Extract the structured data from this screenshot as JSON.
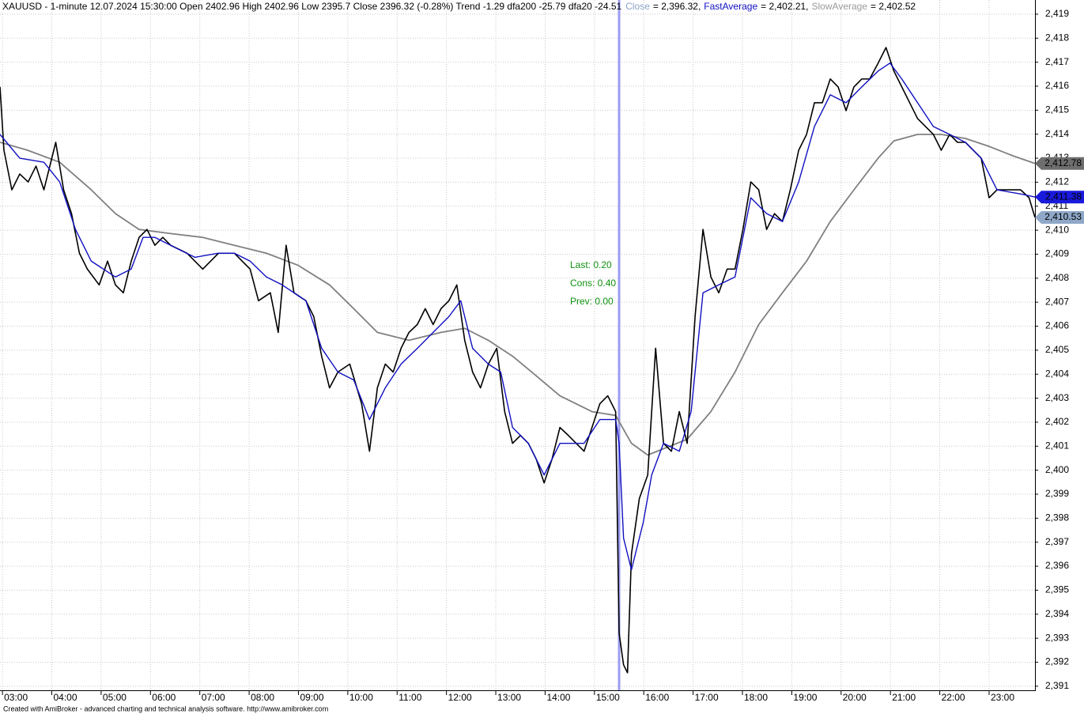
{
  "chart_data": {
    "type": "line",
    "title": "XAUUSD - 1-minute 12.07.2024 15:30:00 Open 2402.96 High 2402.96 Low 2395.7 Close 2396.32 (-0.28%) Trend -1.29 dfa200 -25.79 dfa20 -24.51",
    "footer": "Created with AmiBroker - advanced charting and technical analysis software. http://www.amibroker.com",
    "annotations": [
      "Last: 0.20",
      "Cons: 0.40",
      "Prev: 0.00"
    ],
    "selected_x": 15.5,
    "grid": true,
    "xlim": [
      2.95,
      23.93
    ],
    "ylim": [
      2390.83,
      2419.59
    ],
    "xticks": [
      {
        "value": 3,
        "label": "03:00"
      },
      {
        "value": 4,
        "label": "04:00"
      },
      {
        "value": 5,
        "label": "05:00"
      },
      {
        "value": 6,
        "label": "06:00"
      },
      {
        "value": 7,
        "label": "07:00"
      },
      {
        "value": 8,
        "label": "08:00"
      },
      {
        "value": 9,
        "label": "09:00"
      },
      {
        "value": 10,
        "label": "10:00"
      },
      {
        "value": 11,
        "label": "11:00"
      },
      {
        "value": 12,
        "label": "12:00"
      },
      {
        "value": 13,
        "label": "13:00"
      },
      {
        "value": 14,
        "label": "14:00"
      },
      {
        "value": 15,
        "label": "15:00"
      },
      {
        "value": 16,
        "label": "16:00"
      },
      {
        "value": 17,
        "label": "17:00"
      },
      {
        "value": 18,
        "label": "18:00"
      },
      {
        "value": 19,
        "label": "19:00"
      },
      {
        "value": 20,
        "label": "20:00"
      },
      {
        "value": 21,
        "label": "21:00"
      },
      {
        "value": 22,
        "label": "22:00"
      },
      {
        "value": 23,
        "label": "23:00"
      }
    ],
    "yticks": [
      {
        "value": 2391,
        "label": "2,391"
      },
      {
        "value": 2392,
        "label": "2,392"
      },
      {
        "value": 2393,
        "label": "2,393"
      },
      {
        "value": 2394,
        "label": "2,394"
      },
      {
        "value": 2395,
        "label": "2,395"
      },
      {
        "value": 2396,
        "label": "2,396"
      },
      {
        "value": 2397,
        "label": "2,397"
      },
      {
        "value": 2398,
        "label": "2,398"
      },
      {
        "value": 2399,
        "label": "2,399"
      },
      {
        "value": 2400,
        "label": "2,400"
      },
      {
        "value": 2401,
        "label": "2,401"
      },
      {
        "value": 2402,
        "label": "2,402"
      },
      {
        "value": 2403,
        "label": "2,403"
      },
      {
        "value": 2404,
        "label": "2,404"
      },
      {
        "value": 2405,
        "label": "2,405"
      },
      {
        "value": 2406,
        "label": "2,406"
      },
      {
        "value": 2407,
        "label": "2,407"
      },
      {
        "value": 2408,
        "label": "2,408"
      },
      {
        "value": 2409,
        "label": "2,409"
      },
      {
        "value": 2410,
        "label": "2,410"
      },
      {
        "value": 2411,
        "label": "2,411"
      },
      {
        "value": 2412,
        "label": "2,412"
      },
      {
        "value": 2413,
        "label": "2,413"
      },
      {
        "value": 2414,
        "label": "2,414"
      },
      {
        "value": 2415,
        "label": "2,415"
      },
      {
        "value": 2416,
        "label": "2,416"
      },
      {
        "value": 2417,
        "label": "2,417"
      },
      {
        "value": 2418,
        "label": "2,418"
      },
      {
        "value": 2419,
        "label": "2,419"
      }
    ],
    "series": [
      {
        "name": "Close",
        "color": "#000000",
        "legend_color": "#8aa4c8",
        "legend_value": "= 2,396.32,",
        "last_label": "2,410.53",
        "badge_color": "#8fa8c8",
        "width": 1.6,
        "x": [
          2.95,
          3.03,
          3.19,
          3.35,
          3.52,
          3.68,
          3.84,
          4.08,
          4.24,
          4.4,
          4.56,
          4.72,
          4.96,
          5.13,
          5.29,
          5.45,
          5.61,
          5.77,
          5.93,
          6.09,
          6.25,
          6.41,
          6.74,
          7.06,
          7.38,
          7.7,
          7.86,
          8.02,
          8.19,
          8.43,
          8.59,
          8.75,
          8.91,
          9.15,
          9.31,
          9.47,
          9.63,
          9.8,
          10.04,
          10.28,
          10.44,
          10.6,
          10.76,
          10.92,
          11.08,
          11.24,
          11.41,
          11.57,
          11.73,
          11.89,
          12.05,
          12.21,
          12.37,
          12.53,
          12.69,
          12.85,
          13.02,
          13.18,
          13.34,
          13.5,
          13.66,
          13.82,
          13.98,
          14.14,
          14.3,
          14.47,
          14.63,
          14.79,
          14.95,
          15.11,
          15.27,
          15.43,
          15.5,
          15.59,
          15.67,
          15.75,
          15.91,
          16.08,
          16.24,
          16.4,
          16.56,
          16.72,
          16.88,
          17.04,
          17.2,
          17.36,
          17.52,
          17.69,
          17.85,
          18.01,
          18.17,
          18.33,
          18.49,
          18.65,
          18.81,
          18.97,
          19.14,
          19.3,
          19.46,
          19.62,
          19.78,
          19.94,
          20.1,
          20.26,
          20.42,
          20.58,
          20.75,
          20.91,
          21.07,
          21.23,
          21.39,
          21.55,
          21.71,
          21.87,
          22.03,
          22.2,
          22.36,
          22.52,
          22.68,
          22.84,
          23.0,
          23.16,
          23.32,
          23.48,
          23.64,
          23.81,
          23.93
        ],
        "values": [
          2415.97,
          2413.33,
          2411.68,
          2412.34,
          2412.01,
          2412.67,
          2411.68,
          2413.66,
          2411.68,
          2410.69,
          2409.04,
          2408.38,
          2407.72,
          2408.71,
          2407.72,
          2407.39,
          2408.71,
          2409.7,
          2410.03,
          2409.37,
          2409.7,
          2409.37,
          2409.04,
          2408.38,
          2409.04,
          2409.04,
          2408.71,
          2408.38,
          2407.06,
          2407.39,
          2405.74,
          2409.37,
          2407.39,
          2407.06,
          2406.4,
          2404.75,
          2403.43,
          2404.09,
          2404.42,
          2402.77,
          2400.79,
          2403.43,
          2404.42,
          2404.09,
          2405.08,
          2405.74,
          2406.07,
          2406.73,
          2406.07,
          2406.73,
          2407.06,
          2407.72,
          2405.41,
          2404.09,
          2403.43,
          2404.42,
          2405.08,
          2402.44,
          2401.12,
          2401.45,
          2401.12,
          2400.46,
          2399.47,
          2400.46,
          2401.78,
          2401.45,
          2401.12,
          2400.79,
          2401.78,
          2402.77,
          2403.1,
          2402.44,
          2393.21,
          2391.89,
          2391.56,
          2396.51,
          2398.82,
          2399.8,
          2405.08,
          2401.12,
          2400.79,
          2402.44,
          2401.12,
          2406.4,
          2410.03,
          2408.05,
          2407.39,
          2408.38,
          2408.38,
          2410.03,
          2412.01,
          2411.68,
          2410.03,
          2410.69,
          2410.36,
          2411.68,
          2413.33,
          2413.99,
          2415.31,
          2415.31,
          2416.3,
          2415.97,
          2414.98,
          2415.97,
          2416.3,
          2416.3,
          2416.96,
          2417.61,
          2416.63,
          2415.97,
          2415.31,
          2414.65,
          2414.32,
          2413.99,
          2413.33,
          2413.99,
          2413.66,
          2413.66,
          2413.33,
          2413.0,
          2411.35,
          2411.68,
          2411.68,
          2411.68,
          2411.68,
          2411.35,
          2410.53
        ]
      },
      {
        "name": "FastAverage",
        "color": "#1010c0",
        "legend_color": "#1010c0",
        "legend_value": "= 2,402.21,",
        "last_label": "2,411.38",
        "badge_color": "#1a1adc",
        "width": 1.4,
        "x": [
          2.95,
          3.35,
          3.84,
          4.16,
          4.48,
          4.8,
          5.29,
          5.61,
          5.85,
          6.09,
          6.41,
          6.9,
          7.38,
          7.7,
          8.02,
          8.35,
          8.67,
          9.15,
          9.47,
          9.8,
          10.12,
          10.44,
          10.76,
          11.08,
          11.41,
          11.73,
          12.05,
          12.29,
          12.53,
          12.85,
          13.1,
          13.34,
          13.66,
          13.98,
          14.3,
          14.79,
          15.11,
          15.43,
          15.5,
          15.59,
          15.75,
          15.99,
          16.16,
          16.4,
          16.72,
          16.96,
          17.2,
          17.52,
          17.85,
          18.17,
          18.49,
          18.81,
          19.14,
          19.46,
          19.78,
          20.1,
          20.42,
          20.75,
          20.99,
          21.23,
          21.55,
          21.87,
          22.2,
          22.52,
          22.84,
          23.16,
          23.64,
          23.93
        ],
        "values": [
          2413.99,
          2413.0,
          2412.83,
          2412.01,
          2410.03,
          2408.71,
          2408.05,
          2408.38,
          2409.7,
          2409.7,
          2409.37,
          2408.87,
          2409.04,
          2409.04,
          2408.71,
          2408.05,
          2407.72,
          2407.06,
          2405.08,
          2404.09,
          2403.76,
          2402.11,
          2403.43,
          2404.42,
          2405.08,
          2405.74,
          2406.4,
          2407.06,
          2405.08,
          2404.42,
          2404.09,
          2401.78,
          2401.12,
          2399.8,
          2401.12,
          2401.12,
          2402.11,
          2402.11,
          2401.12,
          2397.17,
          2395.85,
          2397.83,
          2399.8,
          2401.12,
          2400.79,
          2402.44,
          2407.39,
          2407.72,
          2408.05,
          2411.35,
          2410.69,
          2410.36,
          2412.01,
          2414.32,
          2415.64,
          2415.31,
          2415.97,
          2416.63,
          2416.96,
          2416.3,
          2415.31,
          2414.32,
          2413.99,
          2413.66,
          2413.0,
          2411.68,
          2411.51,
          2411.38
        ]
      },
      {
        "name": "SlowAverage",
        "color": "#808080",
        "legend_color": "#9a9a9a",
        "legend_value": "= 2,402.52",
        "last_label": "2,412.78",
        "badge_color": "#6e6e6e",
        "width": 1.8,
        "x": [
          2.95,
          3.51,
          4.16,
          4.8,
          5.29,
          5.77,
          6.41,
          7.06,
          7.7,
          8.35,
          8.99,
          9.63,
          10.12,
          10.6,
          11.24,
          11.89,
          12.37,
          12.85,
          13.34,
          13.82,
          14.3,
          14.95,
          15.43,
          15.75,
          16.08,
          16.48,
          16.88,
          17.36,
          17.85,
          18.33,
          18.81,
          19.3,
          19.78,
          20.26,
          20.75,
          21.07,
          21.55,
          22.03,
          22.52,
          23.0,
          23.48,
          23.93
        ],
        "values": [
          2413.66,
          2413.33,
          2412.83,
          2411.68,
          2410.69,
          2410.03,
          2409.86,
          2409.7,
          2409.37,
          2409.04,
          2408.54,
          2407.72,
          2406.73,
          2405.74,
          2405.41,
          2405.74,
          2405.91,
          2405.41,
          2404.75,
          2403.93,
          2403.1,
          2402.44,
          2402.28,
          2401.12,
          2400.63,
          2400.96,
          2401.29,
          2402.44,
          2404.09,
          2406.07,
          2407.39,
          2408.71,
          2410.36,
          2411.68,
          2413.0,
          2413.72,
          2413.99,
          2413.99,
          2413.82,
          2413.49,
          2413.1,
          2412.78
        ]
      }
    ]
  }
}
